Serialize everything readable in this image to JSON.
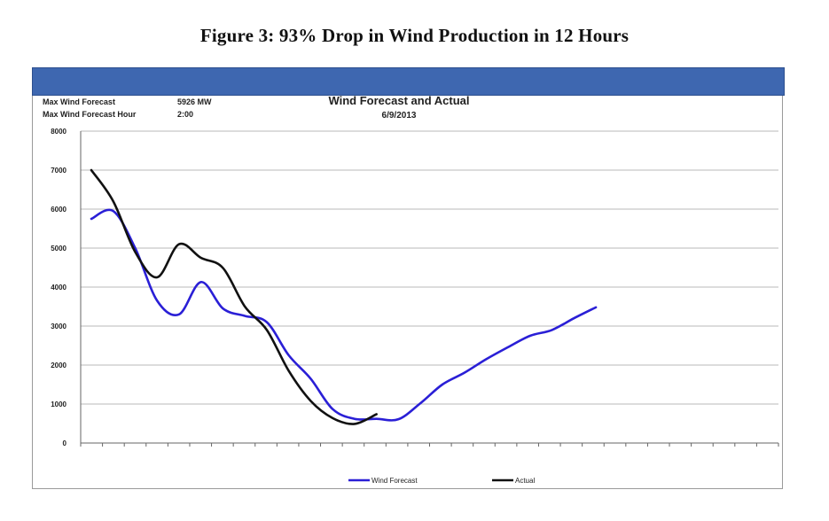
{
  "figure_title": "Figure 3:  93% Drop in Wind Production in 12 Hours",
  "header": {
    "max_forecast_label": "Max Wind Forecast",
    "max_forecast_value": "5926 MW",
    "max_forecast_hour_label": "Max Wind Forecast Hour",
    "max_forecast_hour_value": "2:00",
    "chart_title": "Wind Forecast and Actual",
    "chart_date": "6/9/2013"
  },
  "colors": {
    "banner": "#3e67b0",
    "forecast": "#2a1fd6",
    "actual": "#111111"
  },
  "chart_data": {
    "type": "line",
    "title": "Wind Forecast and Actual",
    "subtitle": "6/9/2013",
    "xlabel": "",
    "ylabel": "",
    "ylim": [
      0,
      8000
    ],
    "y_ticks": [
      0,
      1000,
      2000,
      3000,
      4000,
      5000,
      6000,
      7000,
      8000
    ],
    "y_tick_labels": [
      "0",
      "1000",
      "2000",
      "3000",
      "4000",
      "5000",
      "6000",
      "7000",
      "8000"
    ],
    "x": [
      0,
      1,
      2,
      3,
      4,
      5,
      6,
      7,
      8,
      9,
      10,
      11,
      12,
      13,
      14,
      15,
      16,
      17,
      18,
      19,
      20,
      21,
      22,
      23,
      24,
      25,
      26,
      27,
      28,
      29,
      30,
      31
    ],
    "x_tick_labels_shown": false,
    "grid": true,
    "legend_position": "bottom",
    "series": [
      {
        "name": "Wind Forecast",
        "color": "#2a1fd6",
        "values": [
          5750,
          5950,
          5000,
          3650,
          3300,
          4130,
          3450,
          3260,
          3100,
          2250,
          1650,
          870,
          620,
          620,
          610,
          1020,
          1500,
          1800,
          2150,
          2460,
          2750,
          2900,
          3200,
          3480,
          null,
          null,
          null,
          null,
          null,
          null,
          null,
          null
        ]
      },
      {
        "name": "Actual",
        "color": "#111111",
        "values": [
          7000,
          6200,
          4900,
          4250,
          5100,
          4750,
          4490,
          3500,
          2900,
          1850,
          1080,
          640,
          490,
          740,
          null,
          null,
          null,
          null,
          null,
          null,
          null,
          null,
          null,
          null,
          null,
          null,
          null,
          null,
          null,
          null,
          null,
          null
        ]
      }
    ]
  }
}
